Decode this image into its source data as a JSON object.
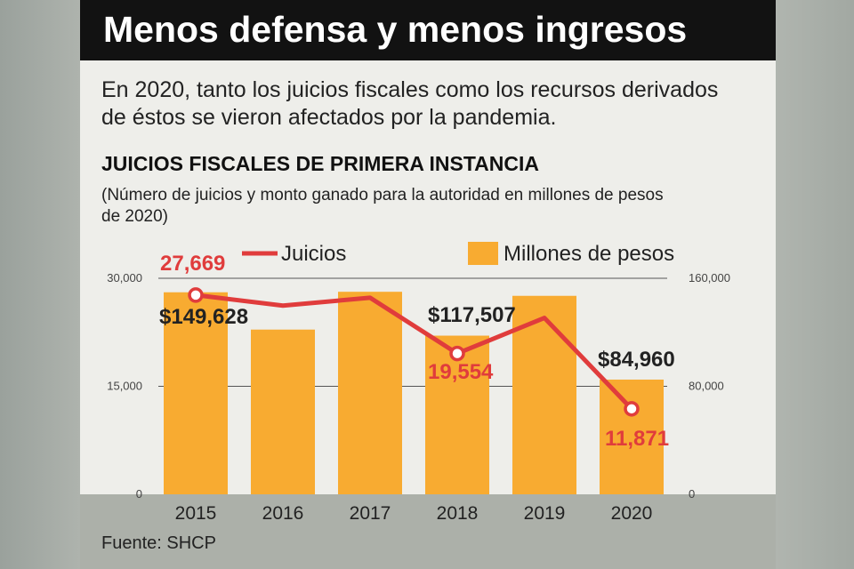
{
  "header": {
    "title": "Menos defensa y menos ingresos",
    "subtitle": "En 2020, tanto los juicios fiscales como los recursos derivados de éstos se vieron afectados por la pandemia."
  },
  "chart_heading": "JUICIOS FISCALES DE PRIMERA INSTANCIA",
  "chart_note": "(Número de juicios y monto ganado para la autoridad en millones de pesos de 2020)",
  "source": "Fuente: SHCP",
  "colors": {
    "bar": "#f8ab31",
    "line": "#e03c3c",
    "title_bg": "#121212",
    "card_bg": "#eeeeea"
  },
  "chart_data": {
    "type": "bar+line",
    "categories": [
      "2015",
      "2016",
      "2017",
      "2018",
      "2019",
      "2020"
    ],
    "legend": {
      "line_name": "Juicios",
      "bar_name": "Millones de pesos",
      "placement": "top-right"
    },
    "bars": {
      "name": "Millones de pesos",
      "axis": "right",
      "values": [
        149628,
        122000,
        150000,
        117507,
        147000,
        84960
      ],
      "labels": [
        "$149,628",
        "",
        "",
        "$117,507",
        "",
        "$84,960"
      ]
    },
    "line": {
      "name": "Juicios",
      "axis": "left",
      "values": [
        27669,
        26200,
        27300,
        19554,
        24500,
        11871
      ],
      "labels": [
        "27,669",
        "",
        "",
        "19,554",
        "",
        "11,871"
      ],
      "markers": [
        true,
        false,
        false,
        true,
        false,
        true
      ]
    },
    "y_left": {
      "range": [
        0,
        30000
      ],
      "ticks": [
        0,
        15000,
        30000
      ],
      "tick_labels": [
        "0",
        "15,000",
        "30,000"
      ]
    },
    "y_right": {
      "range": [
        0,
        160000
      ],
      "ticks": [
        0,
        80000,
        160000
      ],
      "tick_labels": [
        "0",
        "80,000",
        "160,000"
      ]
    },
    "grid": true
  }
}
